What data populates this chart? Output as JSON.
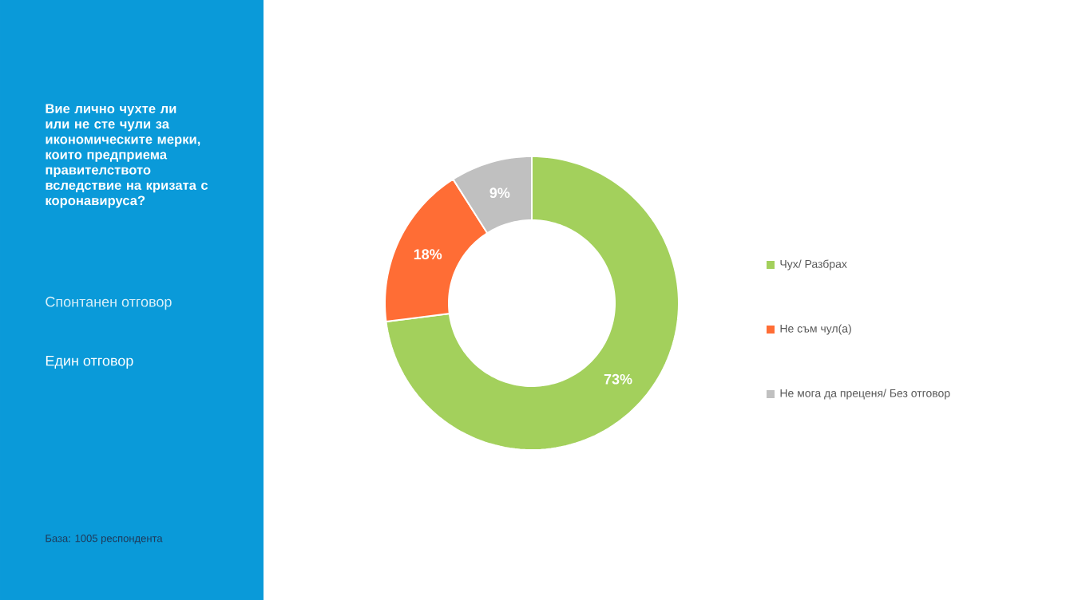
{
  "chart_data": {
    "type": "donut",
    "title": "Вие лично чухте ли или не сте чули за икономическите мерки, които предприема правителството вследствие на кризата с коронавируса?",
    "subtitle": "Спонтанен отговор",
    "annotations": [
      "Един отговор",
      "База: 1005 респондента"
    ],
    "categories": [
      "Чух/ Разбрах",
      "Не съм чул(а)",
      "Не мога да преценя/ Без отговор"
    ],
    "values": [
      73,
      18,
      9
    ],
    "value_labels": [
      "73%",
      "18%",
      "9%"
    ],
    "colors": [
      "#a3d05c",
      "#ff6d35",
      "#c0c0c0"
    ],
    "legend": "right"
  }
}
